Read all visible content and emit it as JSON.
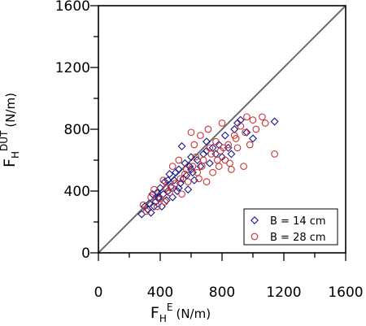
{
  "chart_data": {
    "type": "scatter",
    "title": "",
    "xlabel": {
      "main": "F",
      "sub": "H",
      "sup": "E",
      "unit": "(N/m)"
    },
    "ylabel": {
      "main": "F",
      "sub": "H",
      "sup": "DUT",
      "unit": "(N/m)"
    },
    "xlim": [
      0,
      1600
    ],
    "ylim": [
      0,
      1600
    ],
    "xticks": [
      0,
      400,
      800,
      1200,
      1600
    ],
    "yticks": [
      0,
      400,
      800,
      1200,
      1600
    ],
    "xtick_labels": [
      "0",
      "400",
      "800",
      "1200",
      "1600"
    ],
    "ytick_labels": [
      "0",
      "400",
      "800",
      "1200",
      "1600"
    ],
    "reference_line": "y = x",
    "grid": false,
    "legend_position": "bottom-right",
    "series": [
      {
        "name": "B = 14 cm",
        "marker": "diamond",
        "color": "#1a1a8c",
        "points": [
          [
            280,
            250
          ],
          [
            300,
            300
          ],
          [
            320,
            280
          ],
          [
            330,
            320
          ],
          [
            340,
            260
          ],
          [
            350,
            380
          ],
          [
            360,
            300
          ],
          [
            370,
            330
          ],
          [
            380,
            390
          ],
          [
            390,
            350
          ],
          [
            400,
            420
          ],
          [
            410,
            300
          ],
          [
            420,
            380
          ],
          [
            430,
            460
          ],
          [
            440,
            340
          ],
          [
            450,
            400
          ],
          [
            460,
            510
          ],
          [
            470,
            430
          ],
          [
            480,
            360
          ],
          [
            490,
            470
          ],
          [
            500,
            520
          ],
          [
            510,
            400
          ],
          [
            520,
            540
          ],
          [
            530,
            450
          ],
          [
            540,
            690
          ],
          [
            550,
            480
          ],
          [
            560,
            580
          ],
          [
            570,
            500
          ],
          [
            580,
            410
          ],
          [
            590,
            560
          ],
          [
            600,
            620
          ],
          [
            610,
            520
          ],
          [
            620,
            470
          ],
          [
            640,
            600
          ],
          [
            660,
            560
          ],
          [
            680,
            640
          ],
          [
            700,
            720
          ],
          [
            720,
            580
          ],
          [
            740,
            680
          ],
          [
            760,
            640
          ],
          [
            780,
            700
          ],
          [
            800,
            620
          ],
          [
            820,
            760
          ],
          [
            840,
            680
          ],
          [
            860,
            640
          ],
          [
            880,
            800
          ],
          [
            900,
            840
          ],
          [
            920,
            860
          ],
          [
            960,
            780
          ],
          [
            1000,
            740
          ],
          [
            1140,
            850
          ],
          [
            390,
            360
          ],
          [
            450,
            470
          ],
          [
            520,
            420
          ],
          [
            600,
            540
          ],
          [
            700,
            660
          ]
        ]
      },
      {
        "name": "B = 28 cm",
        "marker": "circle",
        "color": "#cc3333",
        "points": [
          [
            290,
            310
          ],
          [
            310,
            270
          ],
          [
            340,
            360
          ],
          [
            360,
            410
          ],
          [
            380,
            300
          ],
          [
            400,
            350
          ],
          [
            420,
            470
          ],
          [
            440,
            420
          ],
          [
            460,
            390
          ],
          [
            480,
            560
          ],
          [
            500,
            450
          ],
          [
            520,
            600
          ],
          [
            540,
            380
          ],
          [
            560,
            510
          ],
          [
            580,
            460
          ],
          [
            600,
            780
          ],
          [
            610,
            560
          ],
          [
            620,
            700
          ],
          [
            640,
            520
          ],
          [
            650,
            480
          ],
          [
            660,
            760
          ],
          [
            680,
            600
          ],
          [
            700,
            460
          ],
          [
            710,
            800
          ],
          [
            720,
            680
          ],
          [
            740,
            520
          ],
          [
            760,
            720
          ],
          [
            780,
            560
          ],
          [
            790,
            660
          ],
          [
            800,
            840
          ],
          [
            820,
            600
          ],
          [
            840,
            700
          ],
          [
            850,
            580
          ],
          [
            860,
            540
          ],
          [
            880,
            760
          ],
          [
            900,
            680
          ],
          [
            920,
            820
          ],
          [
            940,
            560
          ],
          [
            960,
            880
          ],
          [
            980,
            700
          ],
          [
            1000,
            860
          ],
          [
            1020,
            800
          ],
          [
            1060,
            880
          ],
          [
            1080,
            840
          ],
          [
            1140,
            640
          ],
          [
            430,
            330
          ],
          [
            470,
            420
          ],
          [
            530,
            480
          ],
          [
            570,
            540
          ],
          [
            630,
            620
          ],
          [
            670,
            560
          ],
          [
            730,
            640
          ],
          [
            770,
            600
          ],
          [
            810,
            680
          ],
          [
            890,
            740
          ],
          [
            950,
            780
          ]
        ]
      }
    ]
  }
}
